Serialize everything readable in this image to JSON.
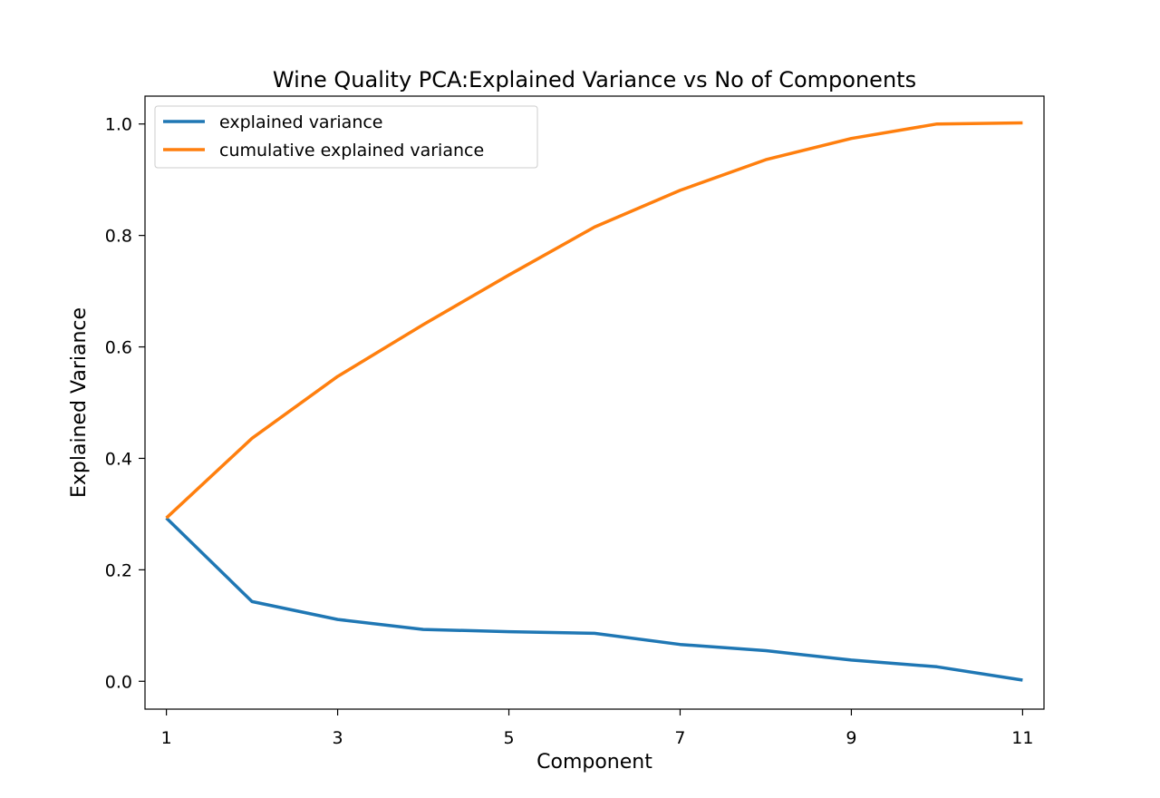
{
  "chart_data": {
    "type": "line",
    "title": "Wine Quality PCA:Explained Variance vs No of Components",
    "xlabel": "Component",
    "ylabel": "Explained Variance",
    "x": [
      1,
      2,
      3,
      4,
      5,
      6,
      7,
      8,
      9,
      10,
      11
    ],
    "xticks": [
      "1",
      "3",
      "5",
      "7",
      "9",
      "11"
    ],
    "yticks": [
      "0.0",
      "0.2",
      "0.4",
      "0.6",
      "0.8",
      "1.0"
    ],
    "xlim": [
      0.75,
      11.25
    ],
    "ylim": [
      -0.05,
      1.05
    ],
    "grid": false,
    "legend_position": "top-left",
    "series": [
      {
        "name": "explained variance",
        "color": "#1f77b4",
        "values": [
          0.293,
          0.143,
          0.111,
          0.093,
          0.089,
          0.086,
          0.066,
          0.055,
          0.038,
          0.026,
          0.002
        ]
      },
      {
        "name": "cumulative explained variance",
        "color": "#ff7f0e",
        "values": [
          0.293,
          0.436,
          0.547,
          0.64,
          0.729,
          0.815,
          0.881,
          0.936,
          0.974,
          1.0,
          1.002
        ]
      }
    ]
  }
}
